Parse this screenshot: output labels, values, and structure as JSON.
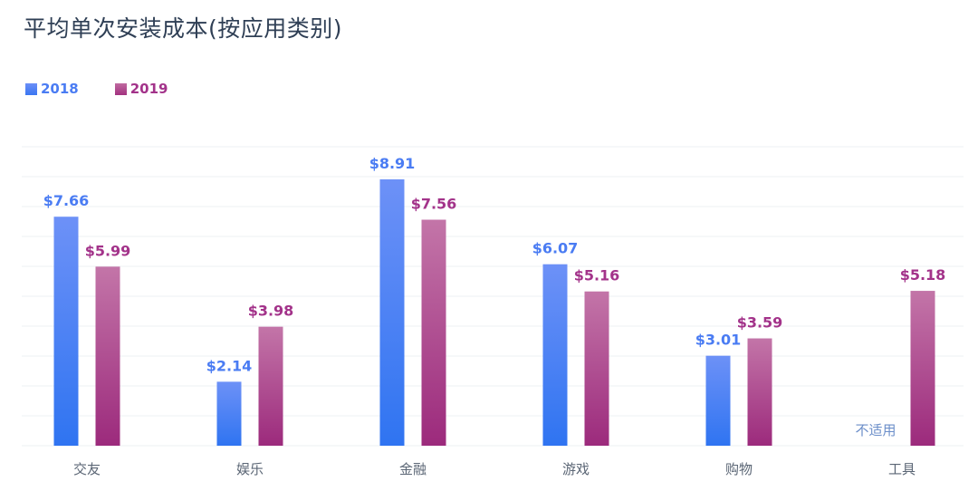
{
  "chart_data": {
    "type": "bar",
    "title": "平均单次安装成本(按应用类别)",
    "categories": [
      "交友",
      "娱乐",
      "金融",
      "游戏",
      "购物",
      "工具"
    ],
    "series": [
      {
        "name": "2018",
        "values": [
          7.66,
          2.14,
          8.91,
          6.07,
          3.01,
          null
        ],
        "labels": [
          "$7.66",
          "$2.14",
          "$8.91",
          "$6.07",
          "$3.01",
          "不适用"
        ],
        "color": "#4a7cf3"
      },
      {
        "name": "2019",
        "values": [
          5.99,
          3.98,
          7.56,
          5.16,
          3.59,
          5.18
        ],
        "labels": [
          "$5.99",
          "$3.98",
          "$7.56",
          "$5.16",
          "$3.59",
          "$5.18"
        ],
        "color": "#a3338a"
      }
    ],
    "ylim": [
      0,
      10
    ],
    "grid": true,
    "legend_position": "top-left"
  },
  "colors": {
    "series_2018_top": "#6d91f7",
    "series_2018_bottom": "#2f74f1",
    "series_2019_top": "#c375a8",
    "series_2019_bottom": "#9c2a7c",
    "grid": "#eef0f3",
    "axis_label": "#5b6675",
    "na_label": "#6b8ec9"
  }
}
